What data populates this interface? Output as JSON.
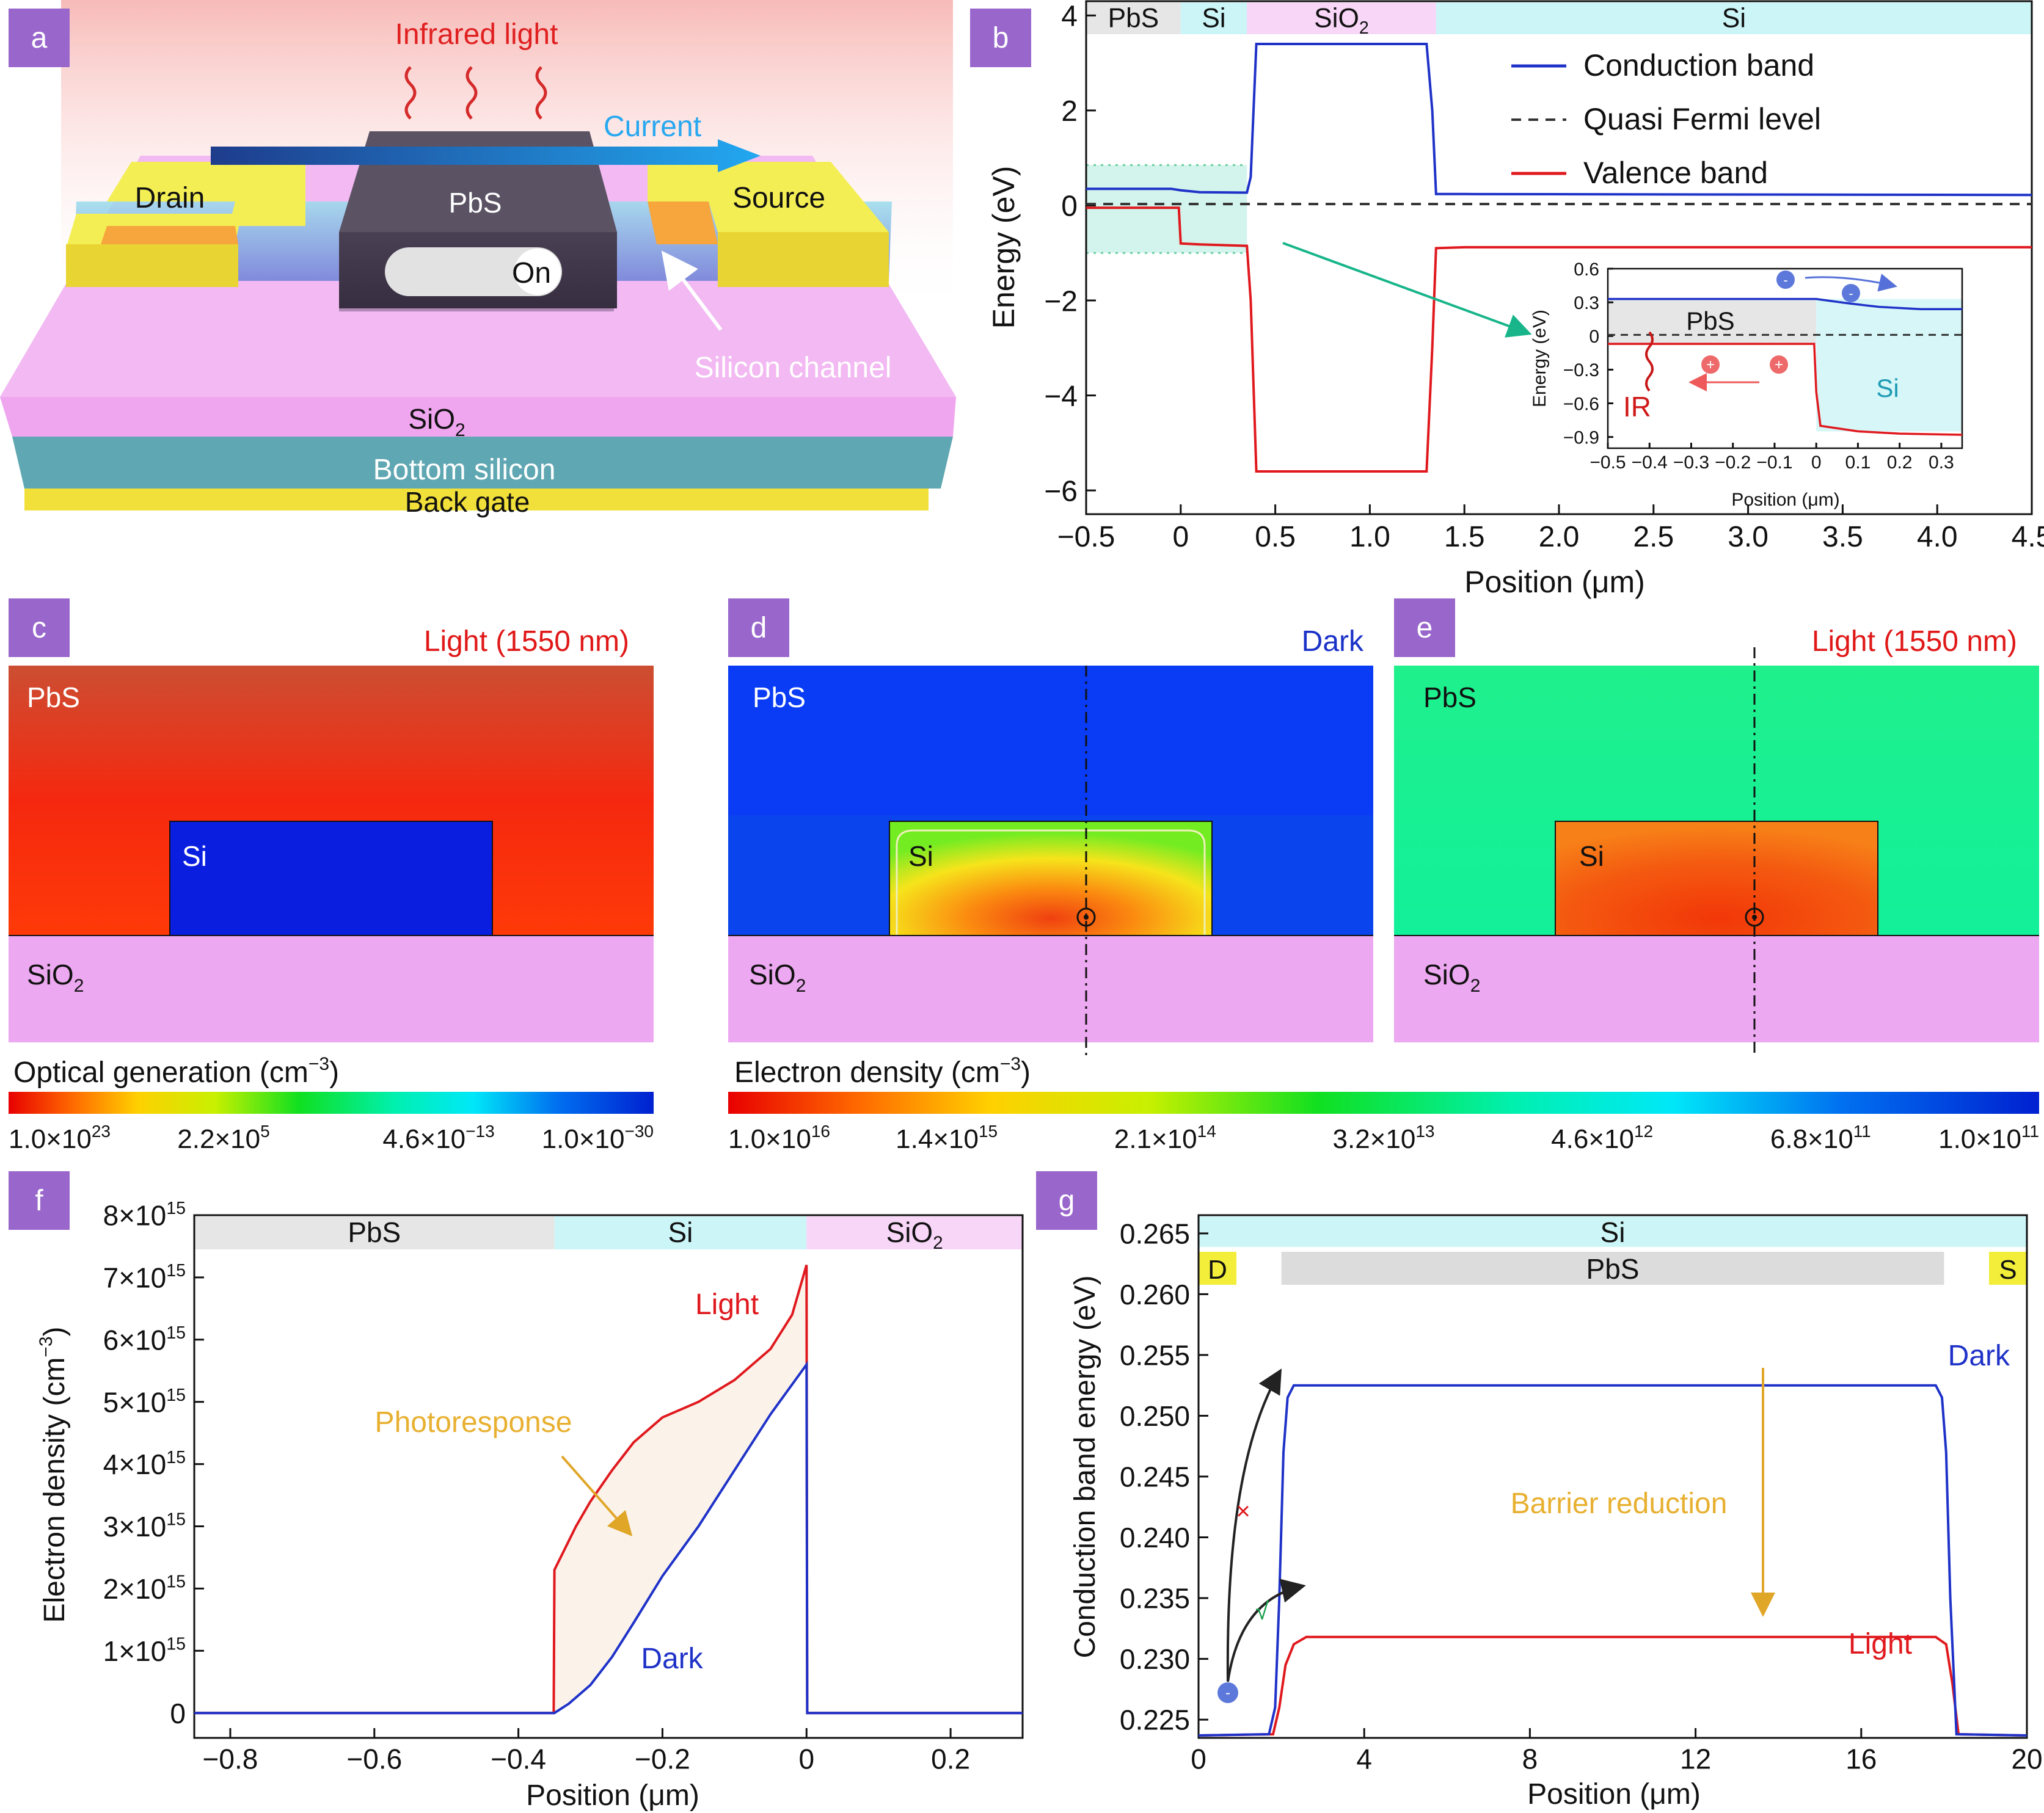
{
  "panel_labels": {
    "a": "a",
    "b": "b",
    "c": "c",
    "d": "d",
    "e": "e",
    "f": "f",
    "g": "g"
  },
  "colors": {
    "label_bg": "#9966cc",
    "conduction": "#1f32c8",
    "valence": "#e0191e",
    "fermi": "#333333",
    "pbs_bar": "#e6e6e6",
    "si_bar": "#ccf5f7",
    "sio2_bar": "#f8d6f8",
    "contact": "#f2ee3a",
    "photo_label": "#e8b030",
    "photo_fill": "#fbf3ea",
    "teal_arrow": "#18b58a"
  },
  "panel_a": {
    "infrared_label": "Infrared light",
    "current_label": "Current",
    "drain_label": "Drain",
    "source_label": "Source",
    "pbs_label": "PbS",
    "on_label": "On",
    "channel_label": "Silicon channel",
    "sio2_label_main": "SiO",
    "sio2_label_sub": "2",
    "bottom_si_label": "Bottom silicon",
    "back_gate_label": "Back gate"
  },
  "chart_data": [
    {
      "id": "b",
      "type": "line",
      "xlabel": "Position (μm)",
      "ylabel": "Energy (eV)",
      "xlim": [
        -0.5,
        4.5
      ],
      "ylim": [
        -6.5,
        4.3
      ],
      "xticks": [
        -0.5,
        0,
        0.5,
        1.0,
        1.5,
        2.0,
        2.5,
        3.0,
        3.5,
        4.0,
        4.5
      ],
      "xtick_labels": [
        "−0.5",
        "0",
        "0.5",
        "1.0",
        "1.5",
        "2.0",
        "2.5",
        "3.0",
        "3.5",
        "4.0",
        "4.5"
      ],
      "yticks": [
        4,
        2,
        0,
        -2,
        -4,
        -6
      ],
      "ytick_labels": [
        "4",
        "2",
        "0",
        "−2",
        "−4",
        "−6"
      ],
      "region_bar": [
        {
          "label": "PbS",
          "from": -0.5,
          "to": 0
        },
        {
          "label": "Si",
          "from": 0,
          "to": 0.35
        },
        {
          "label": "SiO",
          "sub": "2",
          "from": 0.35,
          "to": 1.35
        },
        {
          "label": "Si",
          "from": 1.35,
          "to": 4.5
        }
      ],
      "series": [
        {
          "name": "Conduction band",
          "x": [
            -0.5,
            -0.05,
            0.0,
            0.1,
            0.35,
            0.37,
            0.4,
            1.3,
            1.33,
            1.35,
            1.5,
            4.5
          ],
          "y": [
            0.35,
            0.35,
            0.32,
            0.28,
            0.27,
            0.6,
            3.4,
            3.4,
            2.0,
            0.24,
            0.24,
            0.22
          ]
        },
        {
          "name": "Quasi Fermi level",
          "x": [
            -0.5,
            4.5
          ],
          "y": [
            0.03,
            0.03
          ]
        },
        {
          "name": "Valence band",
          "x": [
            -0.5,
            -0.01,
            0.0,
            0.1,
            0.35,
            0.37,
            0.4,
            1.3,
            1.33,
            1.35,
            1.5,
            4.5
          ],
          "y": [
            -0.05,
            -0.05,
            -0.8,
            -0.82,
            -0.85,
            -2.0,
            -5.6,
            -5.6,
            -3.0,
            -0.9,
            -0.88,
            -0.88
          ]
        }
      ],
      "inset": {
        "xlabel": "Position (μm)",
        "ylabel": "Energy (eV)",
        "xlim": [
          -0.5,
          0.35
        ],
        "ylim": [
          -1.0,
          0.6
        ],
        "xticks": [
          -0.5,
          -0.4,
          -0.3,
          -0.2,
          -0.1,
          0,
          0.1,
          0.2,
          0.3
        ],
        "xtick_labels": [
          "−0.5",
          "−0.4",
          "−0.3",
          "−0.2",
          "−0.1",
          "0",
          "0.1",
          "0.2",
          "0.3"
        ],
        "yticks": [
          0.6,
          0.3,
          0,
          -0.3,
          -0.6,
          -0.9
        ],
        "ytick_labels": [
          "0.6",
          "0.3",
          "0",
          "−0.3",
          "−0.6",
          "−0.9"
        ],
        "pbs_label": "PbS",
        "si_label": "Si",
        "ir_label": "IR",
        "series": [
          {
            "name": "Conduction band",
            "x": [
              -0.5,
              0,
              0.02,
              0.08,
              0.15,
              0.25,
              0.35
            ],
            "y": [
              0.33,
              0.33,
              0.32,
              0.29,
              0.26,
              0.24,
              0.24
            ]
          },
          {
            "name": "Quasi Fermi level",
            "x": [
              -0.5,
              0.35
            ],
            "y": [
              0.01,
              0.01
            ]
          },
          {
            "name": "Valence band",
            "x": [
              -0.5,
              -0.005,
              0.0,
              0.01,
              0.1,
              0.2,
              0.35
            ],
            "y": [
              -0.07,
              -0.07,
              -0.5,
              -0.8,
              -0.85,
              -0.87,
              -0.88
            ]
          }
        ]
      }
    },
    {
      "id": "f",
      "type": "area",
      "xlabel": "Position (μm)",
      "ylabel": "Electron density (cm",
      "ylabel_sup": "−3",
      "ylabel_end": ")",
      "xlim": [
        -0.85,
        0.3
      ],
      "ylim": [
        -400000000000000.0,
        8000000000000000.0
      ],
      "xticks": [
        -0.8,
        -0.6,
        -0.4,
        -0.2,
        0,
        0.2
      ],
      "xtick_labels": [
        "−0.8",
        "−0.6",
        "−0.4",
        "−0.2",
        "0",
        "0.2"
      ],
      "yticks": [
        0,
        1000000000000000.0,
        2000000000000000.0,
        3000000000000000.0,
        4000000000000000.0,
        5000000000000000.0,
        6000000000000000.0,
        7000000000000000.0,
        8000000000000000.0
      ],
      "ytick_labels": [
        "0",
        "1×10",
        "2×10",
        "3×10",
        "4×10",
        "5×10",
        "6×10",
        "7×10",
        "8×10"
      ],
      "ytick_exp": "15",
      "region_bar": [
        {
          "label": "PbS",
          "from": -0.85,
          "to": -0.35
        },
        {
          "label": "Si",
          "from": -0.35,
          "to": 0
        },
        {
          "label": "SiO",
          "sub": "2",
          "from": 0,
          "to": 0.3
        }
      ],
      "series": [
        {
          "name": "Light",
          "x": [
            -0.85,
            -0.351,
            -0.35,
            -0.32,
            -0.3,
            -0.27,
            -0.24,
            -0.2,
            -0.15,
            -0.1,
            -0.05,
            -0.02,
            0.0,
            0.001,
            0.3
          ],
          "y": [
            0,
            0,
            2300000000000000.0,
            3000000000000000.0,
            3400000000000000.0,
            3900000000000000.0,
            4350000000000000.0,
            4750000000000000.0,
            5000000000000000.0,
            5350000000000000.0,
            5850000000000000.0,
            6400000000000000.0,
            7200000000000000.0,
            0,
            0
          ]
        },
        {
          "name": "Dark",
          "x": [
            -0.85,
            -0.35,
            -0.33,
            -0.3,
            -0.27,
            -0.24,
            -0.2,
            -0.15,
            -0.1,
            -0.05,
            0.0,
            0.001,
            0.3
          ],
          "y": [
            0,
            0,
            150000000000000.0,
            450000000000000.0,
            900000000000000.0,
            1450000000000000.0,
            2200000000000000.0,
            3000000000000000.0,
            3900000000000000.0,
            4800000000000000.0,
            5600000000000000.0,
            0,
            0
          ]
        }
      ],
      "annotations": {
        "light": "Light",
        "dark": "Dark",
        "photoresponse": "Photoresponse"
      }
    },
    {
      "id": "g",
      "type": "line",
      "xlabel": "Position (μm)",
      "ylabel": "Conduction band energy (eV)",
      "xlim": [
        0,
        20
      ],
      "ylim": [
        0.2235,
        0.2665
      ],
      "xticks": [
        0,
        4,
        8,
        12,
        16,
        20
      ],
      "xtick_labels": [
        "0",
        "4",
        "8",
        "12",
        "16",
        "20"
      ],
      "yticks": [
        0.225,
        0.23,
        0.235,
        0.24,
        0.245,
        0.25,
        0.255,
        0.26,
        0.265
      ],
      "ytick_labels": [
        "0.225",
        "0.230",
        "0.235",
        "0.240",
        "0.245",
        "0.250",
        "0.255",
        "0.260",
        "0.265"
      ],
      "si_bar_label": "Si",
      "pbs_bar_label": "PbS",
      "d_label": "D",
      "s_label": "S",
      "series": [
        {
          "name": "Dark",
          "x": [
            0,
            1.7,
            1.85,
            1.95,
            2.05,
            2.15,
            2.3,
            17.8,
            17.95,
            18.05,
            18.15,
            18.3,
            20
          ],
          "y": [
            0.2237,
            0.2238,
            0.226,
            0.235,
            0.247,
            0.2515,
            0.2525,
            0.2525,
            0.2515,
            0.247,
            0.235,
            0.2238,
            0.2237
          ]
        },
        {
          "name": "Light",
          "x": [
            0,
            1.8,
            1.95,
            2.1,
            2.3,
            2.6,
            17.8,
            18.05,
            18.2,
            18.35,
            20
          ],
          "y": [
            0.2237,
            0.2238,
            0.226,
            0.2295,
            0.2312,
            0.2318,
            0.2318,
            0.2312,
            0.228,
            0.2238,
            0.2237
          ]
        }
      ],
      "annotations": {
        "dark": "Dark",
        "light": "Light",
        "barrier": "Barrier reduction",
        "cross": "×",
        "check": "√"
      }
    }
  ],
  "panel_c": {
    "title": "Light (1550 nm)",
    "pbs": "PbS",
    "si": "Si",
    "sio2": "SiO",
    "sio2_sub": "2"
  },
  "panel_d": {
    "title": "Dark",
    "pbs": "PbS",
    "si": "Si",
    "sio2": "SiO",
    "sio2_sub": "2"
  },
  "panel_e": {
    "title": "Light (1550 nm)",
    "pbs": "PbS",
    "si": "Si",
    "sio2": "SiO",
    "sio2_sub": "2"
  },
  "colorbar_c": {
    "label": "Optical generation (cm",
    "label_sup": "−3",
    "label_end": ")",
    "ticks": [
      {
        "m": "1.0×10",
        "e": "23"
      },
      {
        "m": "2.2×10",
        "e": "5"
      },
      {
        "m": "4.6×10",
        "e": "−13"
      },
      {
        "m": "1.0×10",
        "e": "−30"
      }
    ]
  },
  "colorbar_d": {
    "label": "Electron density (cm",
    "label_sup": "−3",
    "label_end": ")",
    "ticks": [
      {
        "m": "1.0×10",
        "e": "16"
      },
      {
        "m": "1.4×10",
        "e": "15"
      },
      {
        "m": "2.1×10",
        "e": "14"
      },
      {
        "m": "3.2×10",
        "e": "13"
      },
      {
        "m": "4.6×10",
        "e": "12"
      },
      {
        "m": "6.8×10",
        "e": "11"
      },
      {
        "m": "1.0×10",
        "e": "11"
      }
    ]
  }
}
